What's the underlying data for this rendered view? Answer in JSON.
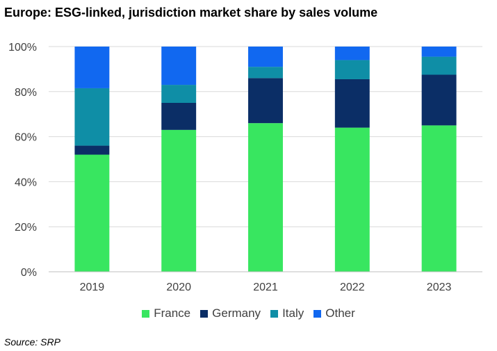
{
  "chart_data": {
    "type": "bar",
    "stacked": true,
    "title": "Europe: ESG-linked, jurisdiction market share by sales volume",
    "categories": [
      "2019",
      "2020",
      "2021",
      "2022",
      "2023"
    ],
    "series": [
      {
        "name": "France",
        "color": "#38e660",
        "values": [
          52,
          63,
          66,
          64,
          65
        ]
      },
      {
        "name": "Germany",
        "color": "#0b2e66",
        "values": [
          4,
          12,
          20,
          21.5,
          22.5
        ]
      },
      {
        "name": "Italy",
        "color": "#0f8ea6",
        "values": [
          25.5,
          8,
          5,
          8.5,
          8
        ]
      },
      {
        "name": "Other",
        "color": "#1168f0",
        "values": [
          18.5,
          17,
          9,
          6,
          4.5
        ]
      }
    ],
    "y_ticks": [
      "0%",
      "20%",
      "40%",
      "60%",
      "80%",
      "100%"
    ],
    "ylim": [
      0,
      100
    ],
    "grid": true,
    "legend_position": "bottom"
  },
  "source": "Source: SRP"
}
